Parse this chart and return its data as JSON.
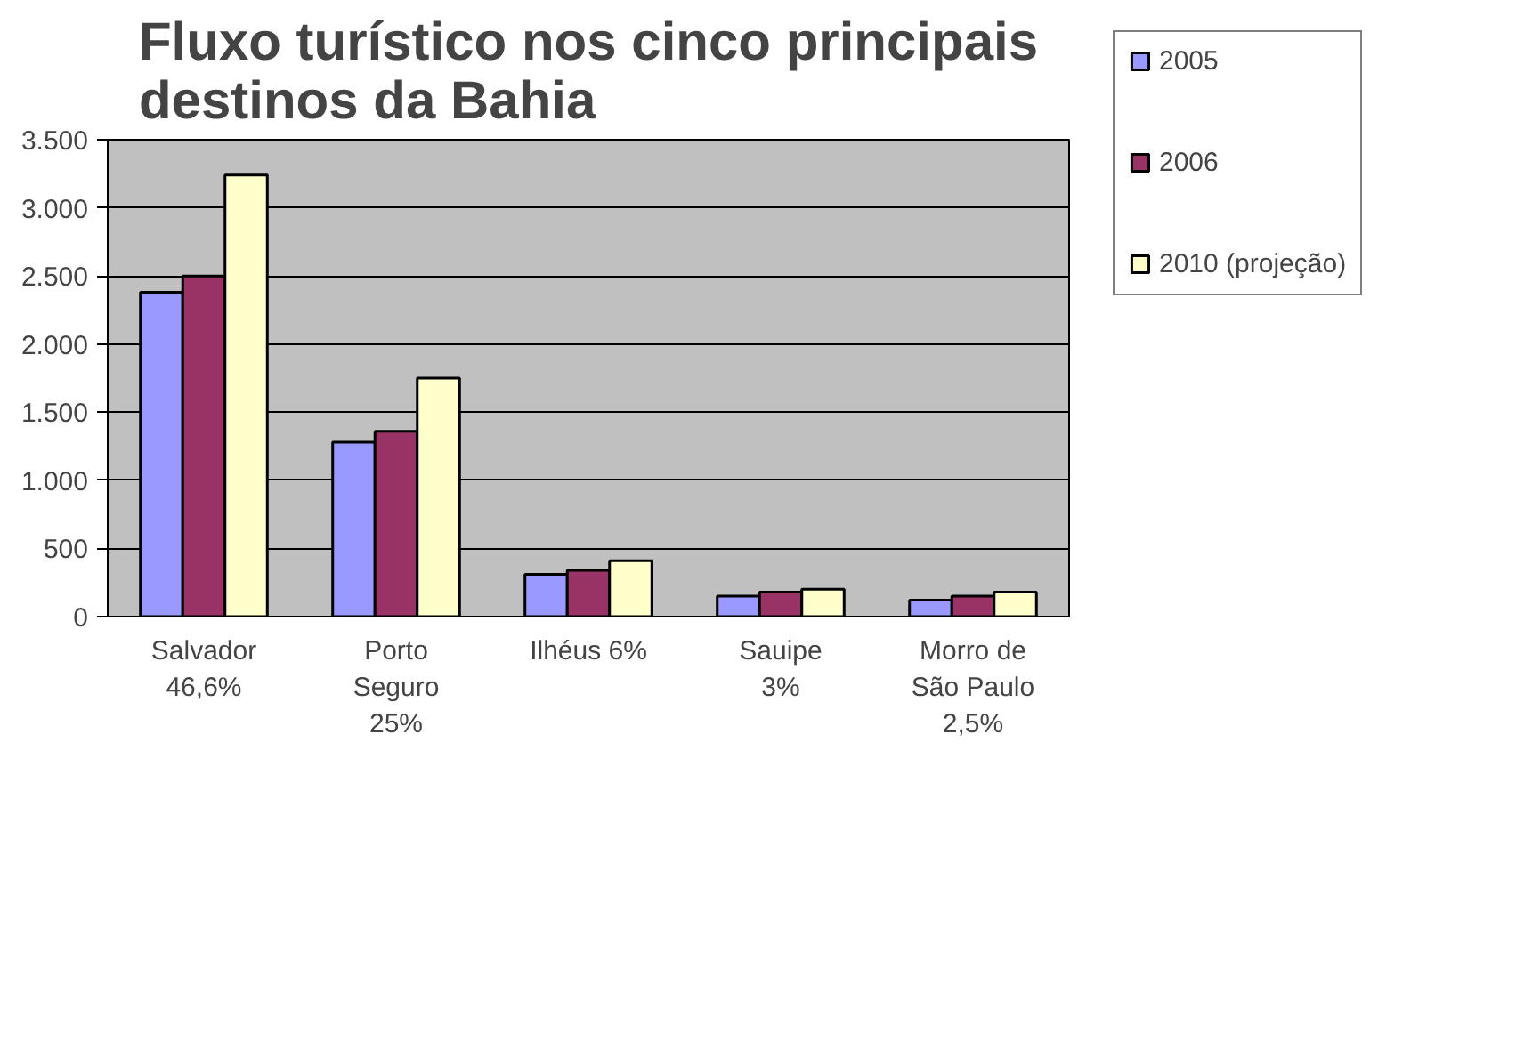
{
  "chart_data": {
    "type": "bar",
    "title": "Fluxo turístico nos cinco principais\ndestinos da Bahia",
    "categories": [
      "Salvador\n46,6%",
      "Porto\nSeguro\n25%",
      "Ilhéus 6%",
      "Sauipe\n3%",
      "Morro de\nSão Paulo\n2,5%"
    ],
    "series": [
      {
        "name": "2005",
        "color": "#9999ff",
        "values": [
          2380,
          1280,
          310,
          150,
          120
        ]
      },
      {
        "name": "2006",
        "color": "#993366",
        "values": [
          2500,
          1360,
          340,
          180,
          150
        ]
      },
      {
        "name": "2010 (projeção)",
        "color": "#ffffcc",
        "values": [
          3240,
          1750,
          410,
          200,
          180
        ]
      }
    ],
    "ylim": [
      0,
      3500
    ],
    "yticks": [
      0,
      {
        "value": 500,
        "label": "500"
      },
      {
        "value": 1000,
        "label": "1.000"
      },
      {
        "value": 1500,
        "label": "1.500"
      },
      {
        "value": 2000,
        "label": "2.000"
      },
      {
        "value": 2500,
        "label": "2.500"
      },
      {
        "value": 3000,
        "label": "3.000"
      },
      {
        "value": 3500,
        "label": "3.500"
      }
    ],
    "grid": "y",
    "legend": "right"
  }
}
